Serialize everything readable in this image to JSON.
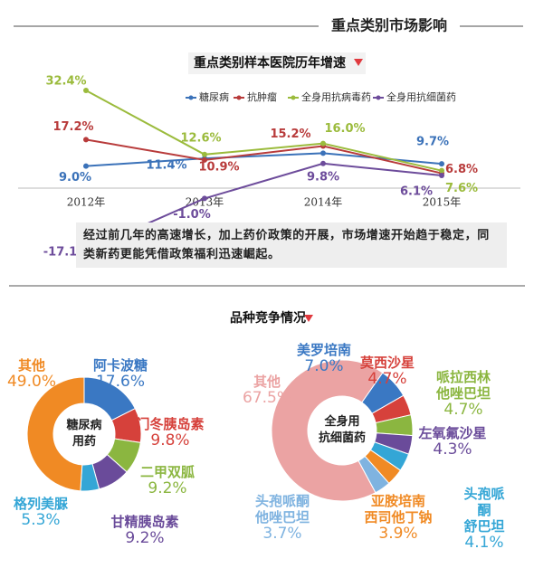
{
  "header": {
    "title": "重点类别市场影响"
  },
  "competition_title": "品种竞争情况",
  "chart_data": [
    {
      "type": "line",
      "title": "重点类别样本医院历年增速",
      "categories": [
        "2012年",
        "2013年",
        "2014年",
        "2015年"
      ],
      "series": [
        {
          "name": "糖尿病",
          "color": "#3b72b9",
          "values": [
            9.0,
            11.4,
            13,
            9.7
          ],
          "value_labels": [
            "9.0%",
            "11.4%",
            null,
            "9.7%"
          ]
        },
        {
          "name": "抗肿瘤",
          "color": "#b83b3b",
          "values": [
            17.2,
            10.9,
            15.2,
            6.8
          ],
          "value_labels": [
            "17.2%",
            "10.9%",
            "15.2%",
            "6.8%"
          ]
        },
        {
          "name": "全身用抗病毒药",
          "color": "#9bbb3c",
          "values": [
            32.4,
            12.6,
            16.0,
            7.6
          ],
          "value_labels": [
            "32.4%",
            "12.6%",
            "16.0%",
            "7.6%"
          ]
        },
        {
          "name": "全身用抗细菌药",
          "color": "#6d4c9b",
          "values": [
            -17.1,
            -1.0,
            9.8,
            6.1
          ],
          "value_labels": [
            "-17.1%",
            "-1.0%",
            "9.8%",
            "6.1%"
          ]
        }
      ],
      "annotation": "经过前几年的高速增长，加上药价政策的开展，市场增速开始趋于稳定，同类新药更能凭借政策福利迅速崛起。"
    },
    {
      "type": "pie",
      "center_label": "糖尿病\n用药",
      "categories": [
        "阿卡波糖",
        "门冬胰岛素",
        "二甲双胍",
        "甘精胰岛素",
        "格列美脲",
        "其他"
      ],
      "values": [
        17.6,
        9.8,
        9.2,
        9.2,
        5.3,
        49.0
      ],
      "value_labels": [
        "17.6%",
        "9.8%",
        "9.2%",
        "9.2%",
        "5.3%",
        "49.0%"
      ],
      "colors": [
        "#3a78c3",
        "#d6413b",
        "#8bb640",
        "#6a4b9a",
        "#34a6d6",
        "#f08a24"
      ]
    },
    {
      "type": "pie",
      "center_label": "全身用\n抗细菌药",
      "categories": [
        "美罗培南",
        "莫西沙星",
        "哌拉西林\n他唑巴坦",
        "左氧氟沙星",
        "头孢哌酮\n舒巴坦",
        "亚胺培南\n西司他丁钠",
        "头孢哌酮\n他唑巴坦",
        "其他"
      ],
      "values": [
        7.0,
        4.7,
        4.7,
        4.3,
        4.1,
        3.9,
        3.7,
        67.5
      ],
      "value_labels": [
        "7.0%",
        "4.7%",
        "4.7%",
        "4.3%",
        "4.1%",
        "3.9%",
        "3.7%",
        "67.5%"
      ],
      "colors": [
        "#3a78c3",
        "#d6413b",
        "#8bb640",
        "#6a4b9a",
        "#34a6d6",
        "#f08a24",
        "#7fb3e0",
        "#eba3a3"
      ]
    }
  ]
}
